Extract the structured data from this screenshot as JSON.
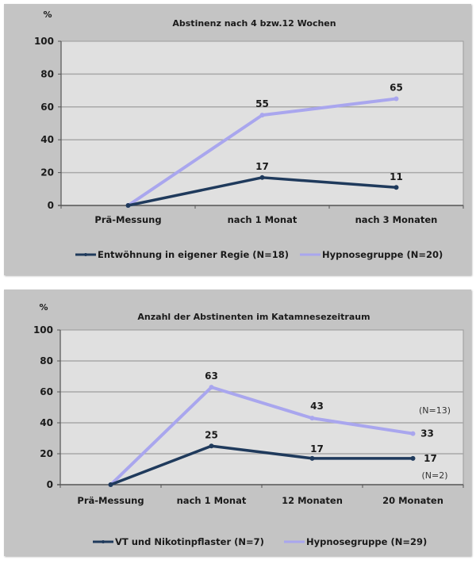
{
  "chart_data": [
    {
      "type": "line",
      "title": "Abstinenz nach 4 bzw.12 Wochen",
      "ylabel": "%",
      "xlabel": "",
      "ylim": [
        0,
        100
      ],
      "yticks": [
        "0",
        "20",
        "40",
        "60",
        "80",
        "100"
      ],
      "grid": true,
      "legend_position": "bottom",
      "categories": [
        "Prä-Messung",
        "nach 1 Monat",
        "nach 3 Monaten"
      ],
      "series": [
        {
          "name": "Entwöhnung in eigener Regie (N=18)",
          "color": "#1f3a5c",
          "values": [
            0,
            17,
            11
          ],
          "labels": [
            "",
            "17",
            "11"
          ]
        },
        {
          "name": "Hypnosegruppe (N=20)",
          "color": "#a9a6ee",
          "values": [
            0,
            55,
            65
          ],
          "labels": [
            "",
            "55",
            "65"
          ]
        }
      ],
      "annotations": []
    },
    {
      "type": "line",
      "title": "Anzahl der Abstinenten im Katamnesezeitraum",
      "ylabel": "%",
      "xlabel": "",
      "ylim": [
        0,
        100
      ],
      "yticks": [
        "0",
        "20",
        "40",
        "60",
        "80",
        "100"
      ],
      "grid": true,
      "legend_position": "bottom",
      "categories": [
        "Prä-Messung",
        "nach 1 Monat",
        "12 Monaten",
        "20 Monaten"
      ],
      "series": [
        {
          "name": "VT und Nikotinpflaster (N=7)",
          "color": "#1f3a5c",
          "values": [
            0,
            25,
            17,
            17
          ],
          "labels": [
            "",
            "25",
            "17",
            "17"
          ]
        },
        {
          "name": "Hypnosegruppe (N=29)",
          "color": "#a9a6ee",
          "values": [
            0,
            63,
            43,
            33
          ],
          "labels": [
            "",
            "63",
            "43",
            "33"
          ]
        }
      ],
      "annotations": [
        "(N=13)",
        "(N=2)"
      ]
    }
  ]
}
